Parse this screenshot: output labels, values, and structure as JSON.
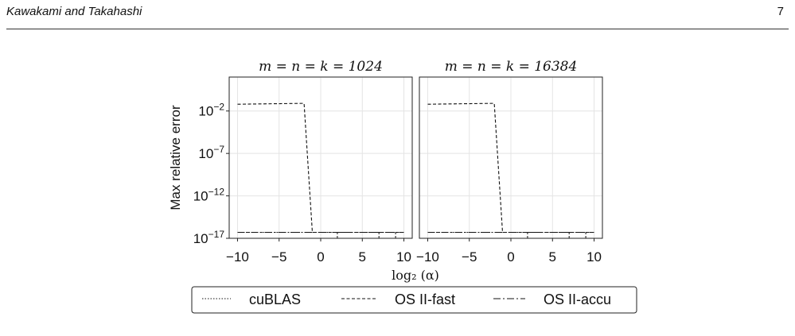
{
  "header": {
    "authors": "Kawakami and Takahashi",
    "page_number": "7"
  },
  "chart_data": {
    "type": "line",
    "ylabel": "Max relative error",
    "xlabel": "log₂ (α)",
    "yscale": "log",
    "ylim_exp": [
      -17,
      2
    ],
    "ytick_exponents": [
      -2,
      -7,
      -12,
      -17
    ],
    "xlim": [
      -11,
      11
    ],
    "xticks": [
      -10,
      -5,
      0,
      5,
      10
    ],
    "grid": true,
    "legend_position": "bottom",
    "legend": [
      {
        "label": "cuBLAS",
        "style": "dotted"
      },
      {
        "label": "OS II-fast",
        "style": "dashed"
      },
      {
        "label": "OS II-accu",
        "style": "dashdot"
      }
    ],
    "panels": [
      {
        "title": "m = n = k = 1024",
        "series": [
          {
            "name": "cuBLAS",
            "style": "dotted",
            "x": [
              -10,
              -2,
              10
            ],
            "log10_y": [
              -16.3,
              -16.3,
              -16.3
            ]
          },
          {
            "name": "OS II-fast",
            "style": "dashed",
            "x": [
              -10,
              -2,
              -1,
              10
            ],
            "log10_y": [
              -1.2,
              -1.1,
              -16.3,
              -16.3
            ]
          },
          {
            "name": "OS II-accu",
            "style": "dashdot",
            "x": [
              -10,
              10
            ],
            "log10_y": [
              -16.3,
              -16.3
            ]
          }
        ],
        "upticks_x": [
          2,
          7,
          9
        ]
      },
      {
        "title": "m = n = k = 16384",
        "series": [
          {
            "name": "cuBLAS",
            "style": "dotted",
            "x": [
              -10,
              -2,
              10
            ],
            "log10_y": [
              -16.3,
              -16.3,
              -16.3
            ]
          },
          {
            "name": "OS II-fast",
            "style": "dashed",
            "x": [
              -10,
              -2,
              -1,
              10
            ],
            "log10_y": [
              -1.2,
              -1.1,
              -16.3,
              -16.3
            ]
          },
          {
            "name": "OS II-accu",
            "style": "dashdot",
            "x": [
              -10,
              10
            ],
            "log10_y": [
              -16.3,
              -16.3
            ]
          }
        ],
        "upticks_x": [
          2,
          7,
          9
        ]
      }
    ]
  }
}
